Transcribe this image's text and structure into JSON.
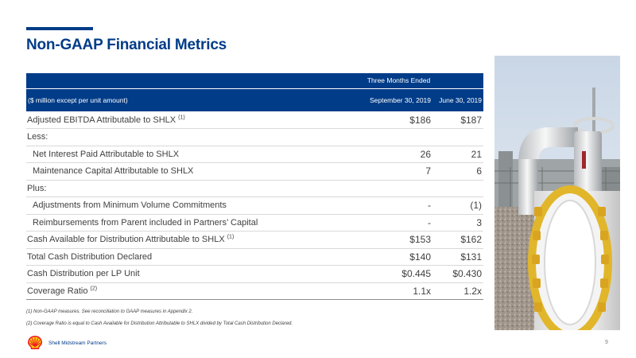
{
  "slide": {
    "title": "Non-GAAP Financial Metrics",
    "page_number": "9",
    "company": "Shell Midstream Partners"
  },
  "table": {
    "group_header": "Three Months Ended",
    "unit_label": "($ million except per unit amount)",
    "columns": [
      "September 30, 2019",
      "June 30, 2019"
    ],
    "rows": [
      {
        "label": "Adjusted EBITDA Attributable to SHLX",
        "note": "(1)",
        "v1": "$186",
        "v2": "$187"
      },
      {
        "label": "Less:",
        "note": "",
        "v1": "",
        "v2": ""
      },
      {
        "label": "Net Interest Paid Attributable to SHLX",
        "note": "",
        "v1": "26",
        "v2": "21"
      },
      {
        "label": "Maintenance Capital Attributable to SHLX",
        "note": "",
        "v1": "7",
        "v2": "6"
      },
      {
        "label": "Plus:",
        "note": "",
        "v1": "",
        "v2": ""
      },
      {
        "label": "Adjustments from Minimum Volume Commitments",
        "note": "",
        "v1": "-",
        "v2": "(1)"
      },
      {
        "label": "Reimbursements from Parent included in Partners’ Capital",
        "note": "",
        "v1": "-",
        "v2": "3"
      },
      {
        "label": "Cash Available for Distribution Attributable to SHLX",
        "note": "(1)",
        "v1": "$153",
        "v2": "$162"
      },
      {
        "label": "Total Cash Distribution Declared",
        "note": "",
        "v1": "$140",
        "v2": "$131"
      },
      {
        "label": "Cash Distribution per LP Unit",
        "note": "",
        "v1": "$0.445",
        "v2": "$0.430"
      },
      {
        "label": "Coverage Ratio",
        "note": "(2)",
        "v1": "1.1x",
        "v2": "1.2x"
      }
    ]
  },
  "footnotes": [
    "(1) Non-GAAP measures.  See reconciliation to GAAP measures in Appendix 2.",
    "(2) Coverage Ratio is equal to Cash Available for Distribution Attributable to SHLX divided by Total Cash Distribution Declared."
  ]
}
